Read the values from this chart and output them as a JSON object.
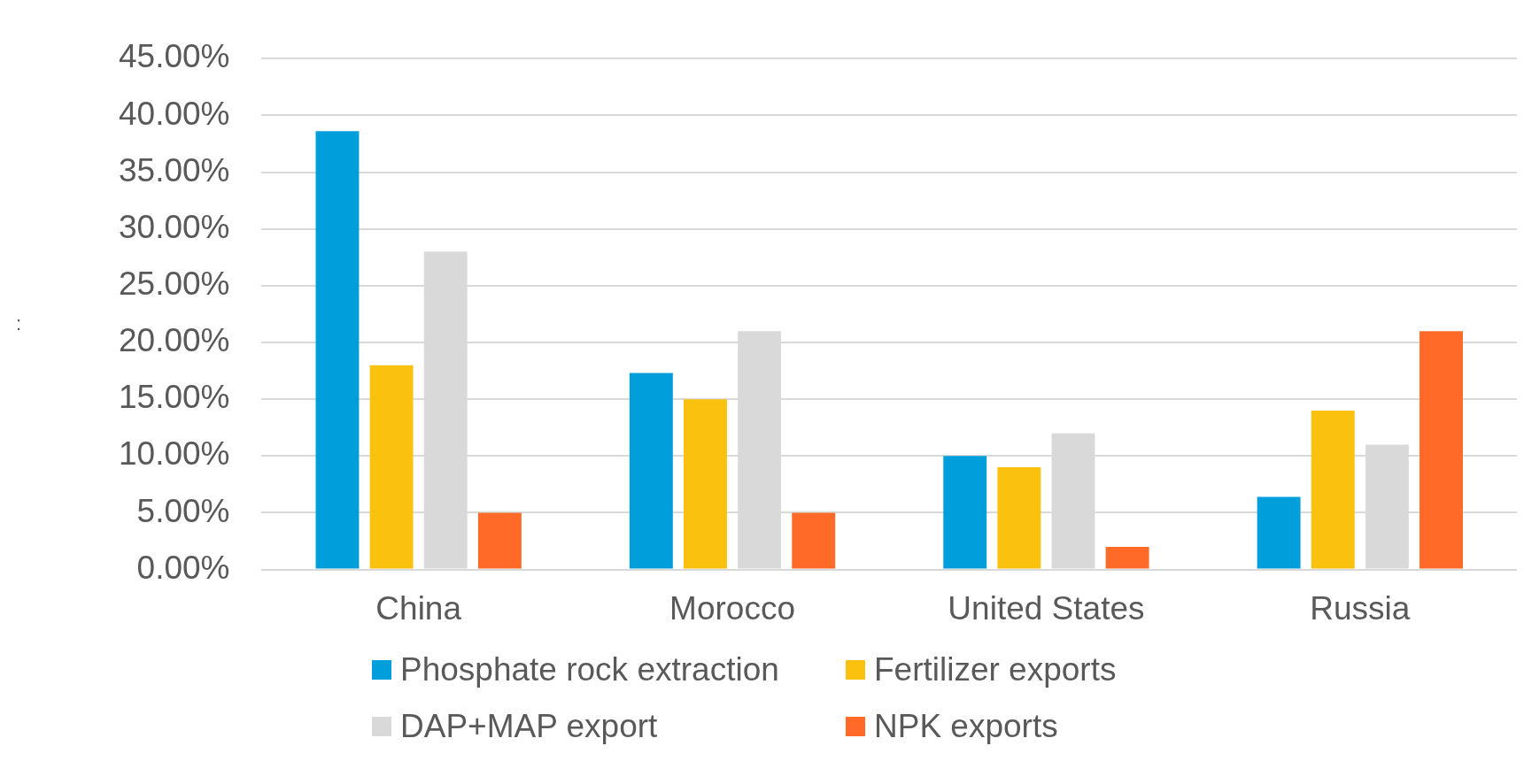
{
  "chart_data": {
    "type": "bar",
    "categories": [
      "China",
      "Morocco",
      "United States",
      "Russia"
    ],
    "series": [
      {
        "name": "Phosphate rock extraction",
        "color": "#009fdb",
        "values": [
          38.6,
          17.3,
          10,
          6.4
        ]
      },
      {
        "name": "Fertilizer exports",
        "color": "#fbc10f",
        "values": [
          18,
          15,
          9,
          14
        ]
      },
      {
        "name": "DAP+MAP export",
        "color": "#d9d9d9",
        "values": [
          28,
          21,
          12,
          11
        ]
      },
      {
        "name": "NPK exports",
        "color": "#ff6a29",
        "values": [
          5,
          5,
          2,
          21
        ]
      }
    ],
    "ylim": [
      0,
      45
    ],
    "yticks": [
      {
        "value": 0,
        "label": "0.00%"
      },
      {
        "value": 5,
        "label": "5.00%"
      },
      {
        "value": 10,
        "label": "10.00%"
      },
      {
        "value": 15,
        "label": "15.00%"
      },
      {
        "value": 20,
        "label": "20.00%"
      },
      {
        "value": 25,
        "label": "25.00%"
      },
      {
        "value": 30,
        "label": "30.00%"
      },
      {
        "value": 35,
        "label": "35.00%"
      },
      {
        "value": 40,
        "label": "40.00%"
      },
      {
        "value": 45,
        "label": "45.00%"
      }
    ],
    "grid": "y",
    "legend": "bottom",
    "annotations": [
      ":"
    ]
  }
}
